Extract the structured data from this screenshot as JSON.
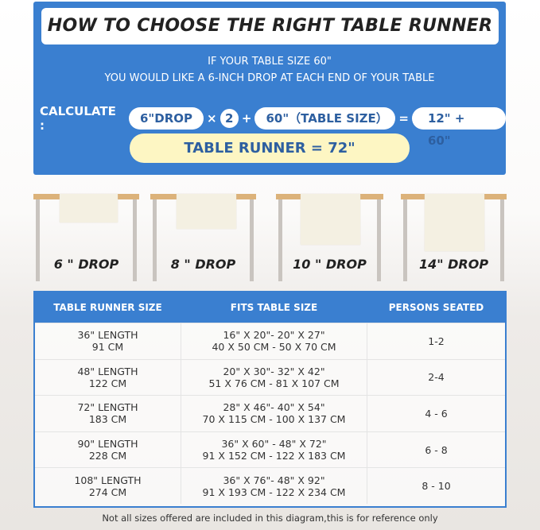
{
  "title": "HOW TO CHOOSE THE RIGHT TABLE RUNNER",
  "intro": [
    "IF YOUR TABLE SIZE 60\"",
    "YOU WOULD LIKE A 6-INCH DROP AT EACH END OF YOUR TABLE"
  ],
  "calc": {
    "label": "CALCULATE :",
    "drop": "6\"DROP",
    "times": "×",
    "two": "2",
    "plus": "+",
    "table": "60\"（TABLE SIZE）",
    "equals": "=",
    "sum": "12\" + 60\"",
    "result": "TABLE RUNNER = 72\""
  },
  "drops": [
    "6 \" DROP",
    "8 \" DROP",
    "10 \" DROP",
    "14\" DROP"
  ],
  "table": {
    "headers": [
      "TABLE RUNNER SIZE",
      "FITS TABLE SIZE",
      "PERSONS SEATED"
    ],
    "rows": [
      {
        "size": [
          "36\" LENGTH",
          "91 CM"
        ],
        "fits": [
          "16\" X 20\"- 20\" X 27\"",
          "40 X 50 CM - 50 X 70 CM"
        ],
        "persons": "1-2"
      },
      {
        "size": [
          "48\" LENGTH",
          "122 CM"
        ],
        "fits": [
          "20\" X 30\"- 32\" X 42\"",
          "51 X 76 CM - 81 X 107 CM"
        ],
        "persons": "2-4"
      },
      {
        "size": [
          "72\" LENGTH",
          "183 CM"
        ],
        "fits": [
          "28\" X 46\"- 40\" X 54\"",
          "70 X 115 CM - 100 X 137 CM"
        ],
        "persons": "4 - 6"
      },
      {
        "size": [
          "90\" LENGTH",
          "228 CM"
        ],
        "fits": [
          "36\" X 60\" - 48\" X 72\"",
          "91 X 152 CM - 122 X 183 CM"
        ],
        "persons": "6 - 8"
      },
      {
        "size": [
          "108\" LENGTH",
          "274 CM"
        ],
        "fits": [
          "36\" X 76\"- 48\" X 92\"",
          "91 X 193 CM - 122 X 234 CM"
        ],
        "persons": "8 - 10"
      }
    ]
  },
  "footnote": "Not all sizes offered are included in this diagram,this is for reference only",
  "colors": {
    "blue": "#3a7fd0",
    "yellow": "#fdf6c3",
    "wood": "#dcb27a"
  }
}
